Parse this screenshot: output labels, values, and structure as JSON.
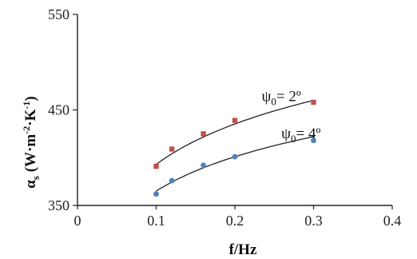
{
  "chart_data": {
    "type": "scatter",
    "xlabel": "f/Hz",
    "ylabel": "α",
    "ylabel_sub": "s",
    "ylabel_units": "(W·m",
    "ylabel_sup1": "-2",
    "ylabel_mid": "·K",
    "ylabel_sup2": "-1",
    "ylabel_end": ")",
    "xlim": [
      0,
      0.4
    ],
    "ylim": [
      350,
      550
    ],
    "x_ticks": [
      0,
      0.1,
      0.2,
      0.3,
      0.4
    ],
    "x_tick_labels": [
      "0",
      "0.1",
      "0.2",
      "0.3",
      "0.4"
    ],
    "y_ticks": [
      350,
      450,
      550
    ],
    "y_tick_labels": [
      "350",
      "450",
      "550"
    ],
    "grid": false,
    "series": [
      {
        "label_prefix": "ψ",
        "label_sub": "0",
        "label_value": "= 2º",
        "color": "#c0504d",
        "marker": "square",
        "x": [
          0.1,
          0.12,
          0.16,
          0.2,
          0.3
        ],
        "y": [
          391,
          409,
          425,
          439,
          458
        ],
        "trend": {
          "x": [
            0.1,
            0.3
          ],
          "y": [
            393,
            460
          ]
        }
      },
      {
        "label_prefix": "ψ",
        "label_sub": "0",
        "label_value": "= 4º",
        "color": "#4f81bd",
        "marker": "circle",
        "x": [
          0.1,
          0.12,
          0.16,
          0.2,
          0.3
        ],
        "y": [
          362,
          376,
          392,
          401,
          418
        ],
        "trend": {
          "x": [
            0.1,
            0.3
          ],
          "y": [
            365,
            422
          ]
        }
      }
    ]
  }
}
